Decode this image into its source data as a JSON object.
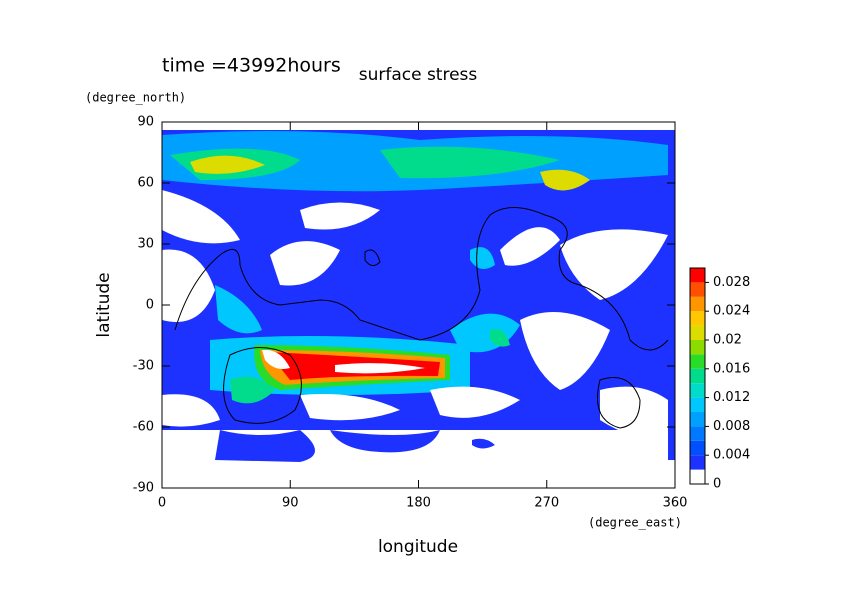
{
  "chart_data": {
    "type": "contour",
    "title": "surface stress",
    "subtitle": "time =43992hours",
    "x_label": "longitude",
    "x_unit": "(degree_east)",
    "y_label": "latitude",
    "y_unit": "(degree_north)",
    "xlim": [
      0,
      360
    ],
    "xticks": [
      0,
      90,
      180,
      270,
      360
    ],
    "ylim": [
      -90,
      90
    ],
    "yticks": [
      90,
      60,
      30,
      0,
      -30,
      -60,
      -90
    ],
    "colorbar": {
      "lim": [
        0,
        0.03
      ],
      "ticks": [
        0,
        0.004,
        0.008,
        0.012,
        0.016,
        0.02,
        0.024,
        0.028
      ],
      "levels": [
        0,
        0.002,
        0.004,
        0.006,
        0.008,
        0.01,
        0.012,
        0.014,
        0.016,
        0.018,
        0.02,
        0.022,
        0.024,
        0.026,
        0.028,
        0.03
      ],
      "colors": [
        "#ffffff",
        "#1e32ff",
        "#0050ff",
        "#0078ff",
        "#00a0ff",
        "#00c8ff",
        "#00dcc8",
        "#00dc8c",
        "#28dc28",
        "#8cdc00",
        "#dcdc00",
        "#ffc800",
        "#ff9600",
        "#ff5000",
        "#ff0000"
      ]
    }
  }
}
